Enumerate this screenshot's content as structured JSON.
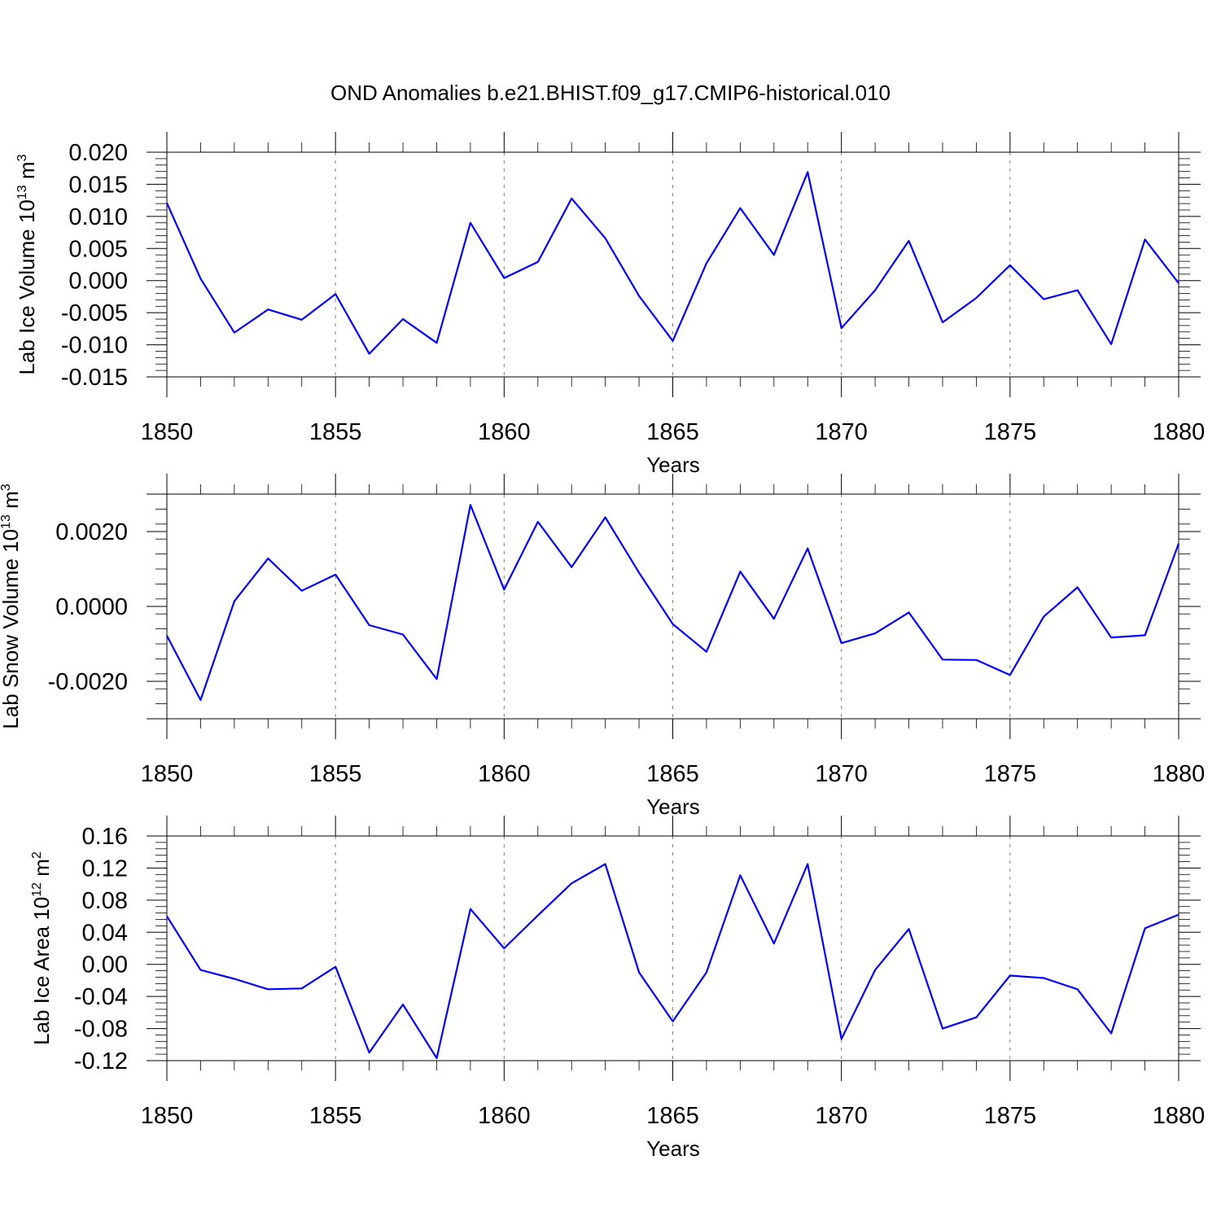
{
  "title": "OND Anomalies b.e21.BHIST.f09_g17.CMIP6-historical.010",
  "line_color": "#0000ff",
  "chart_data": [
    {
      "type": "line",
      "title": "OND Anomalies b.e21.BHIST.f09_g17.CMIP6-historical.010",
      "xlabel": "Years",
      "ylabel": "Lab Ice Volume 10",
      "ylabel_exp": "13",
      "ylabel_unit": " m",
      "ylabel_unit_exp": "3",
      "xlim": [
        1850,
        1880
      ],
      "ylim": [
        -0.015,
        0.02
      ],
      "xticks": [
        "1850",
        "1855",
        "1860",
        "1865",
        "1870",
        "1875",
        "1880"
      ],
      "yticks": [
        {
          "value": 0.02,
          "label": "0.020"
        },
        {
          "value": 0.015,
          "label": "0.015"
        },
        {
          "value": 0.01,
          "label": "0.010"
        },
        {
          "value": 0.005,
          "label": "0.005"
        },
        {
          "value": 0.0,
          "label": "0.000"
        },
        {
          "value": -0.005,
          "label": "-0.005"
        },
        {
          "value": -0.01,
          "label": "-0.010"
        },
        {
          "value": -0.015,
          "label": "-0.015"
        }
      ],
      "x": [
        1850,
        1851,
        1852,
        1853,
        1854,
        1855,
        1856,
        1857,
        1858,
        1859,
        1860,
        1861,
        1862,
        1863,
        1864,
        1865,
        1866,
        1867,
        1868,
        1869,
        1870,
        1871,
        1872,
        1873,
        1874,
        1875,
        1876,
        1877,
        1878,
        1879,
        1880
      ],
      "values": [
        0.0121,
        0.0003,
        -0.0081,
        -0.0045,
        -0.0061,
        -0.0021,
        -0.0114,
        -0.006,
        -0.0097,
        0.009,
        0.0004,
        0.0029,
        0.0128,
        0.0066,
        -0.0024,
        -0.0094,
        0.0027,
        0.0113,
        0.004,
        0.0169,
        -0.0074,
        -0.0015,
        0.0062,
        -0.0065,
        -0.0027,
        0.0024,
        -0.0029,
        -0.0015,
        -0.0099,
        0.0064,
        -0.0004
      ]
    },
    {
      "type": "line",
      "xlabel": "Years",
      "ylabel": "Lab Snow Volume 10",
      "ylabel_exp": "13",
      "ylabel_unit": " m",
      "ylabel_unit_exp": "3",
      "xlim": [
        1850,
        1880
      ],
      "ylim": [
        -0.003,
        0.003
      ],
      "xticks": [
        "1850",
        "1855",
        "1860",
        "1865",
        "1870",
        "1875",
        "1880"
      ],
      "yticks": [
        {
          "value": 0.002,
          "label": "0.0020"
        },
        {
          "value": 0.0,
          "label": "0.0000"
        },
        {
          "value": -0.002,
          "label": "-0.0020"
        }
      ],
      "x": [
        1850,
        1851,
        1852,
        1853,
        1854,
        1855,
        1856,
        1857,
        1858,
        1859,
        1860,
        1861,
        1862,
        1863,
        1864,
        1865,
        1866,
        1867,
        1868,
        1869,
        1870,
        1871,
        1872,
        1873,
        1874,
        1875,
        1876,
        1877,
        1878,
        1879,
        1880
      ],
      "values": [
        -0.00078,
        -0.0025,
        0.00014,
        0.00128,
        0.00042,
        0.00085,
        -0.0005,
        -0.00075,
        -0.00194,
        0.00271,
        0.00045,
        0.00226,
        0.00105,
        0.00238,
        0.0009,
        -0.00047,
        -0.00121,
        0.00093,
        -0.00033,
        0.00155,
        -0.00098,
        -0.00072,
        -0.00016,
        -0.00142,
        -0.00143,
        -0.00183,
        -0.00027,
        0.00051,
        -0.00083,
        -0.00077,
        0.00168
      ]
    },
    {
      "type": "line",
      "xlabel": "Years",
      "ylabel": "Lab Ice Area 10",
      "ylabel_exp": "12",
      "ylabel_unit": " m",
      "ylabel_unit_exp": "2",
      "xlim": [
        1850,
        1880
      ],
      "ylim": [
        -0.12,
        0.16
      ],
      "xticks": [
        "1850",
        "1855",
        "1860",
        "1865",
        "1870",
        "1875",
        "1880"
      ],
      "yticks": [
        {
          "value": 0.16,
          "label": "0.16"
        },
        {
          "value": 0.12,
          "label": "0.12"
        },
        {
          "value": 0.08,
          "label": "0.08"
        },
        {
          "value": 0.04,
          "label": "0.04"
        },
        {
          "value": 0.0,
          "label": "0.00"
        },
        {
          "value": -0.04,
          "label": "-0.04"
        },
        {
          "value": -0.08,
          "label": "-0.08"
        },
        {
          "value": -0.12,
          "label": "-0.12"
        }
      ],
      "x": [
        1850,
        1851,
        1852,
        1853,
        1854,
        1855,
        1856,
        1857,
        1858,
        1859,
        1860,
        1861,
        1862,
        1863,
        1864,
        1865,
        1866,
        1867,
        1868,
        1869,
        1870,
        1871,
        1872,
        1873,
        1874,
        1875,
        1876,
        1877,
        1878,
        1879,
        1880
      ],
      "values": [
        0.06,
        -0.007,
        -0.018,
        -0.031,
        -0.03,
        -0.003,
        -0.11,
        -0.05,
        -0.117,
        0.069,
        0.02,
        0.061,
        0.101,
        0.125,
        -0.01,
        -0.071,
        -0.01,
        0.111,
        0.026,
        0.125,
        -0.093,
        -0.007,
        0.044,
        -0.08,
        -0.066,
        -0.014,
        -0.017,
        -0.031,
        -0.086,
        0.045,
        0.062
      ]
    }
  ]
}
